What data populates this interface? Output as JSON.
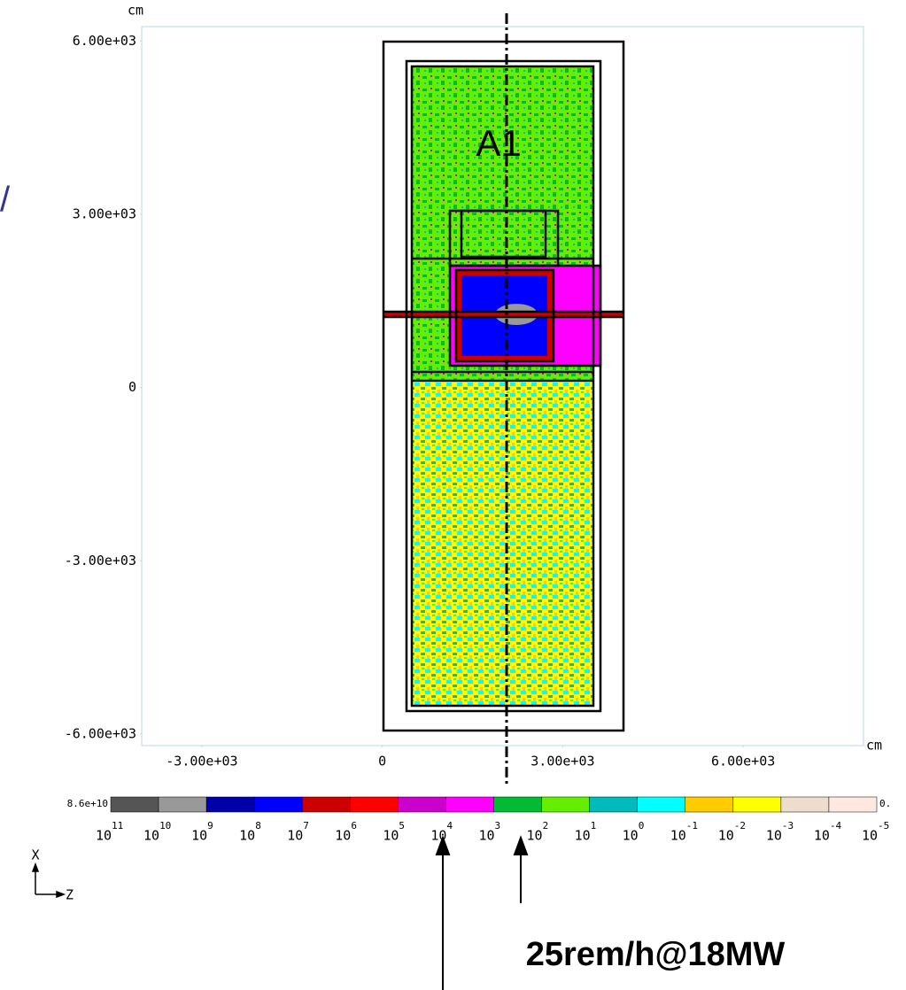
{
  "chart_data": {
    "type": "heatmap",
    "x_unit": "cm",
    "y_unit": "cm",
    "xlim": [
      -4000,
      8000
    ],
    "ylim": [
      -6200,
      6250
    ],
    "xticks": [
      {
        "value": -3000,
        "label": "-3.00e+03"
      },
      0,
      {
        "value": 3000,
        "label": "3.00e+03"
      },
      {
        "value": 6000,
        "label": "6.00e+03"
      }
    ],
    "yticks": [
      {
        "value": 6000,
        "label": "6.00e+03"
      },
      {
        "value": 3000,
        "label": "3.00e+03"
      },
      0,
      {
        "value": -3000,
        "label": "-3.00e+03"
      },
      {
        "value": -6000,
        "label": "-6.00e+03"
      }
    ],
    "colorbar": {
      "max_label": "8.6e+10",
      "min_label": "0.",
      "base": "10",
      "exponents": [
        11,
        10,
        9,
        8,
        7,
        6,
        5,
        4,
        3,
        2,
        1,
        0,
        -1,
        -2,
        -3,
        -4,
        -5
      ],
      "colors": [
        "#555555",
        "#999999",
        "#0000aa",
        "#0000ff",
        "#cc0000",
        "#ff0000",
        "#cc00cc",
        "#ff00ff",
        "#00bb33",
        "#66ee00",
        "#00bbbb",
        "#00ffff",
        "#ffcc00",
        "#ffff00",
        "#eeddcc",
        "#ffe8e0"
      ]
    },
    "annotations": [
      "A1",
      "25rem/h@18MW"
    ],
    "axis_labels": {
      "vertical": "X",
      "horizontal": "Z"
    },
    "edge_mark": "/"
  }
}
